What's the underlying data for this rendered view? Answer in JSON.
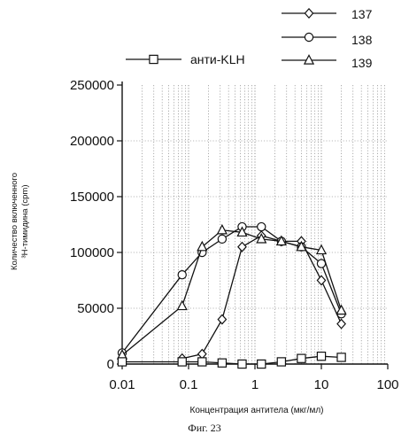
{
  "chart_data": {
    "type": "line",
    "xscale": "log",
    "xlim": [
      0.01,
      100
    ],
    "ylim": [
      0,
      250000
    ],
    "xticks": [
      "0.01",
      "0.1",
      "1",
      "10",
      "100"
    ],
    "yticks": [
      "0",
      "50000",
      "100000",
      "150000",
      "200000",
      "250000"
    ],
    "xlabel": "Концентрация антитела (мкг/мл)",
    "ylabel_line1": "Количество включенного",
    "ylabel_line2": "³H-тимидина (cpm)",
    "caption": "Фиг. 23",
    "grid": true,
    "legend_position": "top",
    "series": [
      {
        "name": "137",
        "marker": "diamond",
        "x": [
          0.08,
          0.16,
          0.32,
          0.64,
          1.25,
          2.5,
          5,
          10,
          20
        ],
        "y": [
          5000,
          9000,
          40000,
          105000,
          115000,
          110000,
          110000,
          75000,
          36000
        ]
      },
      {
        "name": "138",
        "marker": "circle",
        "x": [
          0.01,
          0.08,
          0.16,
          0.32,
          0.64,
          1.25,
          2.5,
          5,
          10,
          20
        ],
        "y": [
          10000,
          80000,
          100000,
          112000,
          123000,
          123000,
          110000,
          105000,
          90000,
          45000
        ]
      },
      {
        "name": "139",
        "marker": "triangle",
        "x": [
          0.01,
          0.08,
          0.16,
          0.32,
          0.64,
          1.25,
          2.5,
          5,
          10,
          20
        ],
        "y": [
          8000,
          52000,
          105000,
          120000,
          118000,
          112000,
          110000,
          105000,
          102000,
          48000
        ]
      },
      {
        "name": "анти-KLH",
        "marker": "square",
        "x": [
          0.01,
          0.08,
          0.16,
          0.32,
          0.64,
          1.25,
          2.5,
          5,
          10,
          20
        ],
        "y": [
          2000,
          2000,
          2000,
          1000,
          0,
          0,
          2000,
          5000,
          7000,
          6000
        ]
      }
    ]
  }
}
